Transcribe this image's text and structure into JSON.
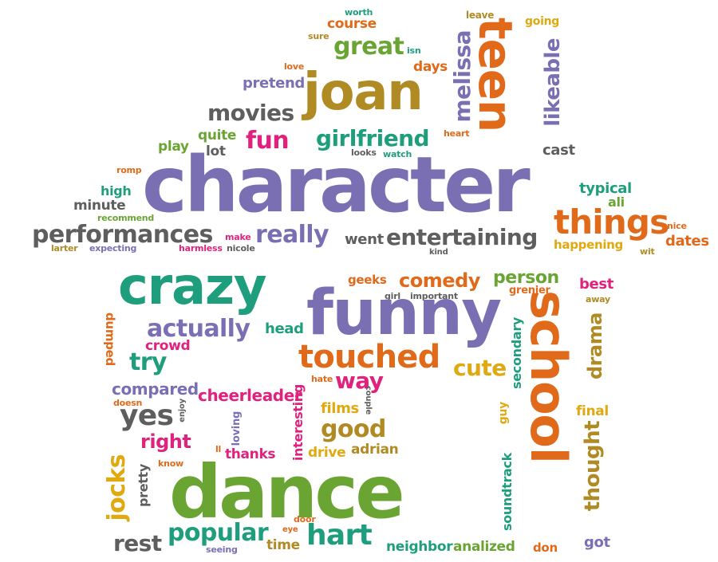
{
  "palette": {
    "purple": "#7b6fb3",
    "orange": "#e06a1a",
    "green": "#6aa533",
    "teal": "#1f9e7e",
    "gray": "#5e5e5e",
    "brown": "#b08a22",
    "pink": "#e0227e",
    "gold": "#e0a910"
  },
  "words": {
    "character": "character",
    "joan": "joan",
    "teen": "teen",
    "melissa": "melissa",
    "likeable": "likeable",
    "great": "great",
    "course": "course",
    "worth": "worth",
    "leave": "leave",
    "going": "going",
    "sure": "sure",
    "isn": "isn",
    "days": "days",
    "love": "love",
    "pretend": "pretend",
    "movies": "movies",
    "fun": "fun",
    "girlfriend": "girlfriend",
    "heart": "heart",
    "quite": "quite",
    "play": "play",
    "lot": "lot",
    "looks": "looks",
    "watch": "watch",
    "cast": "cast",
    "romp": "romp",
    "high": "high",
    "typical": "typical",
    "ali": "ali",
    "minute": "minute",
    "recommend": "recommend",
    "things": "things",
    "nice": "nice",
    "dates": "dates",
    "performances": "performances",
    "make": "make",
    "really": "really",
    "went": "went",
    "entertaining": "entertaining",
    "happening": "happening",
    "larter": "larter",
    "expecting": "expecting",
    "harmless": "harmless",
    "nicole": "nicole",
    "kind": "kind",
    "wit": "wit",
    "crazy": "crazy",
    "geeks": "geeks",
    "comedy": "comedy",
    "person": "person",
    "best": "best",
    "grenier": "grenier",
    "girl": "girl",
    "important": "important",
    "away": "away",
    "funny": "funny",
    "school": "school",
    "actually": "actually",
    "head": "head",
    "secondary": "secondary",
    "dumped": "dumped",
    "crowd": "crowd",
    "drama": "drama",
    "touched": "touched",
    "try": "try",
    "cute": "cute",
    "hate": "hate",
    "way": "way",
    "compared": "compared",
    "doesn": "doesn",
    "enjoy": "enjoy",
    "cheerleader": "cheerleader",
    "interesting": "interesting",
    "couple": "couple",
    "yes": "yes",
    "films": "films",
    "guy": "guy",
    "final": "final",
    "good": "good",
    "thought": "thought",
    "loving": "loving",
    "right": "right",
    "ll": "ll",
    "thanks": "thanks",
    "drive": "drive",
    "adrian": "adrian",
    "know": "know",
    "jocks": "jocks",
    "pretty": "pretty",
    "dance": "dance",
    "soundtrack": "soundtrack",
    "door": "door",
    "eye": "eye",
    "rest": "rest",
    "popular": "popular",
    "hart": "hart",
    "time": "time",
    "seeing": "seeing",
    "neighbor": "neighbor",
    "analized": "analized",
    "don": "don",
    "got": "got"
  }
}
